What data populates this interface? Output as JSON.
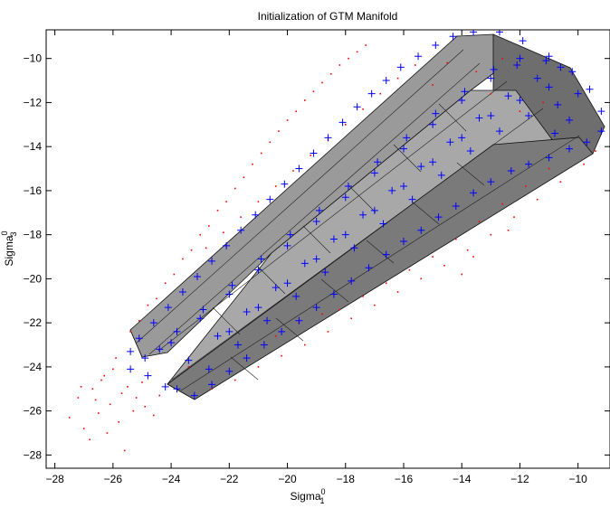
{
  "chart_data": {
    "type": "scatter",
    "title": "Initialization of GTM Manifold",
    "xlabel": {
      "base": "Sigma",
      "sup": "0",
      "sub": "1"
    },
    "ylabel": {
      "base": "Sigma",
      "sup": "0",
      "sub": "3"
    },
    "xlim": [
      -28.3,
      -8.9
    ],
    "ylim": [
      -28.6,
      -8.7
    ],
    "xticks": [
      -28,
      -26,
      -24,
      -22,
      -20,
      -18,
      -16,
      -14,
      -12,
      -10
    ],
    "yticks": [
      -28,
      -26,
      -24,
      -22,
      -20,
      -18,
      -16,
      -14,
      -12,
      -10
    ],
    "grid": false,
    "series": [
      {
        "marker": "+",
        "color": "#0000ff",
        "points": [
          [
            -25.4,
            -23.3
          ],
          [
            -25.1,
            -22.7
          ],
          [
            -24.6,
            -22.0
          ],
          [
            -24.1,
            -21.3
          ],
          [
            -23.6,
            -20.6
          ],
          [
            -23.1,
            -19.9
          ],
          [
            -22.6,
            -19.2
          ],
          [
            -22.1,
            -18.5
          ],
          [
            -21.6,
            -17.8
          ],
          [
            -21.1,
            -17.1
          ],
          [
            -20.6,
            -16.4
          ],
          [
            -20.1,
            -15.7
          ],
          [
            -19.6,
            -15.0
          ],
          [
            -19.1,
            -14.3
          ],
          [
            -18.6,
            -13.6
          ],
          [
            -18.1,
            -12.9
          ],
          [
            -17.6,
            -12.2
          ],
          [
            -17.1,
            -11.6
          ],
          [
            -16.6,
            -11.0
          ],
          [
            -16.1,
            -10.4
          ],
          [
            -15.5,
            -9.9
          ],
          [
            -14.9,
            -9.4
          ],
          [
            -14.3,
            -9.0
          ],
          [
            -13.6,
            -8.8
          ],
          [
            -12.7,
            -8.8
          ],
          [
            -11.9,
            -9.2
          ],
          [
            -11.0,
            -9.9
          ],
          [
            -10.2,
            -10.6
          ],
          [
            -9.6,
            -11.4
          ],
          [
            -9.2,
            -12.4
          ],
          [
            -9.2,
            -13.3
          ],
          [
            -9.7,
            -13.8
          ],
          [
            -10.3,
            -14.1
          ],
          [
            -11.0,
            -14.5
          ],
          [
            -11.7,
            -14.8
          ],
          [
            -12.3,
            -15.1
          ],
          [
            -13.0,
            -15.6
          ],
          [
            -13.6,
            -16.1
          ],
          [
            -14.2,
            -16.7
          ],
          [
            -14.8,
            -17.2
          ],
          [
            -15.4,
            -17.8
          ],
          [
            -16.0,
            -18.3
          ],
          [
            -16.6,
            -18.9
          ],
          [
            -17.2,
            -19.5
          ],
          [
            -17.8,
            -20.1
          ],
          [
            -18.4,
            -20.7
          ],
          [
            -19.0,
            -21.3
          ],
          [
            -19.6,
            -21.9
          ],
          [
            -20.2,
            -22.4
          ],
          [
            -20.8,
            -23.0
          ],
          [
            -21.4,
            -23.6
          ],
          [
            -22.0,
            -24.2
          ],
          [
            -22.6,
            -24.8
          ],
          [
            -23.2,
            -25.3
          ],
          [
            -25.4,
            -24.1
          ],
          [
            -24.8,
            -24.4
          ],
          [
            -24.2,
            -24.9
          ],
          [
            -23.8,
            -25.0
          ],
          [
            -24.9,
            -23.6
          ],
          [
            -24.4,
            -23.2
          ],
          [
            -23.8,
            -22.4
          ],
          [
            -22.9,
            -21.4
          ],
          [
            -21.9,
            -20.3
          ],
          [
            -20.9,
            -19.1
          ],
          [
            -19.9,
            -18.0
          ],
          [
            -18.9,
            -16.9
          ],
          [
            -17.9,
            -15.8
          ],
          [
            -16.9,
            -14.7
          ],
          [
            -15.9,
            -13.6
          ],
          [
            -14.9,
            -12.5
          ],
          [
            -13.9,
            -11.5
          ],
          [
            -12.9,
            -10.5
          ],
          [
            -12.0,
            -10.0
          ],
          [
            -23.4,
            -23.7
          ],
          [
            -22.4,
            -22.6
          ],
          [
            -21.4,
            -21.5
          ],
          [
            -20.4,
            -20.4
          ],
          [
            -19.4,
            -19.3
          ],
          [
            -18.4,
            -18.2
          ],
          [
            -17.4,
            -17.1
          ],
          [
            -16.4,
            -16.0
          ],
          [
            -15.4,
            -14.9
          ],
          [
            -14.4,
            -13.8
          ],
          [
            -13.4,
            -12.7
          ],
          [
            -12.4,
            -11.7
          ],
          [
            -11.4,
            -10.9
          ],
          [
            -10.6,
            -10.4
          ],
          [
            -24.0,
            -22.9
          ],
          [
            -23.0,
            -21.8
          ],
          [
            -22.0,
            -20.7
          ],
          [
            -21.0,
            -19.6
          ],
          [
            -20.0,
            -18.5
          ],
          [
            -19.0,
            -17.4
          ],
          [
            -18.0,
            -16.3
          ],
          [
            -17.0,
            -15.2
          ],
          [
            -16.0,
            -14.1
          ],
          [
            -15.0,
            -13.0
          ],
          [
            -14.0,
            -11.9
          ],
          [
            -13.0,
            -10.9
          ],
          [
            -12.1,
            -10.3
          ],
          [
            -11.1,
            -10.1
          ],
          [
            -22.7,
            -24.1
          ],
          [
            -21.7,
            -23.0
          ],
          [
            -20.7,
            -21.9
          ],
          [
            -19.7,
            -20.8
          ],
          [
            -18.7,
            -19.7
          ],
          [
            -17.7,
            -18.6
          ],
          [
            -16.7,
            -17.5
          ],
          [
            -15.7,
            -16.4
          ],
          [
            -14.7,
            -15.3
          ],
          [
            -13.7,
            -14.2
          ],
          [
            -12.7,
            -13.3
          ],
          [
            -11.7,
            -12.6
          ],
          [
            -10.7,
            -12.1
          ],
          [
            -10.0,
            -11.6
          ],
          [
            -22.0,
            -22.4
          ],
          [
            -21.0,
            -21.3
          ],
          [
            -20.0,
            -20.2
          ],
          [
            -19.0,
            -19.1
          ],
          [
            -18.0,
            -18.0
          ],
          [
            -17.0,
            -16.9
          ],
          [
            -16.0,
            -15.8
          ],
          [
            -15.0,
            -14.7
          ],
          [
            -14.0,
            -13.6
          ],
          [
            -13.0,
            -12.6
          ],
          [
            -12.0,
            -11.9
          ],
          [
            -11.0,
            -11.3
          ],
          [
            -10.3,
            -12.8
          ],
          [
            -10.8,
            -13.4
          ]
        ]
      },
      {
        "marker": ".",
        "color": "#ff0000",
        "points": [
          [
            -27.5,
            -26.3
          ],
          [
            -27.2,
            -25.4
          ],
          [
            -27.0,
            -26.8
          ],
          [
            -26.8,
            -27.3
          ],
          [
            -26.7,
            -25.0
          ],
          [
            -26.5,
            -26.1
          ],
          [
            -26.4,
            -24.6
          ],
          [
            -26.2,
            -27.0
          ],
          [
            -26.1,
            -25.7
          ],
          [
            -26.0,
            -24.1
          ],
          [
            -25.8,
            -26.5
          ],
          [
            -25.7,
            -25.2
          ],
          [
            -25.6,
            -27.8
          ],
          [
            -25.5,
            -24.9
          ],
          [
            -25.3,
            -26.0
          ],
          [
            -25.2,
            -25.4
          ],
          [
            -25.9,
            -23.6
          ],
          [
            -26.3,
            -24.4
          ],
          [
            -26.6,
            -25.5
          ],
          [
            -27.1,
            -24.9
          ],
          [
            -24.9,
            -25.8
          ],
          [
            -24.6,
            -26.2
          ],
          [
            -24.4,
            -25.3
          ],
          [
            -25.0,
            -24.7
          ],
          [
            -25.4,
            -22.4
          ],
          [
            -25.1,
            -21.9
          ],
          [
            -24.8,
            -21.2
          ],
          [
            -24.5,
            -20.9
          ],
          [
            -24.2,
            -20.2
          ],
          [
            -23.9,
            -19.8
          ],
          [
            -23.6,
            -19.1
          ],
          [
            -23.3,
            -18.7
          ],
          [
            -23.0,
            -18.0
          ],
          [
            -22.7,
            -17.6
          ],
          [
            -22.4,
            -16.9
          ],
          [
            -22.1,
            -16.5
          ],
          [
            -21.8,
            -15.9
          ],
          [
            -21.5,
            -15.4
          ],
          [
            -21.2,
            -14.8
          ],
          [
            -20.9,
            -14.3
          ],
          [
            -20.6,
            -13.8
          ],
          [
            -20.3,
            -13.3
          ],
          [
            -20.0,
            -12.8
          ],
          [
            -19.7,
            -12.4
          ],
          [
            -19.4,
            -11.9
          ],
          [
            -19.1,
            -11.5
          ],
          [
            -18.8,
            -11.1
          ],
          [
            -18.5,
            -10.7
          ],
          [
            -18.2,
            -10.3
          ],
          [
            -17.9,
            -10.0
          ],
          [
            -17.6,
            -9.7
          ],
          [
            -17.3,
            -9.4
          ],
          [
            -22.8,
            -18.6
          ],
          [
            -22.2,
            -17.9
          ],
          [
            -21.6,
            -17.2
          ],
          [
            -21.0,
            -16.5
          ],
          [
            -20.4,
            -15.8
          ],
          [
            -19.8,
            -15.1
          ],
          [
            -19.2,
            -14.4
          ],
          [
            -18.6,
            -13.7
          ],
          [
            -18.0,
            -13.0
          ],
          [
            -17.4,
            -12.3
          ],
          [
            -16.8,
            -11.6
          ],
          [
            -16.2,
            -10.9
          ],
          [
            -15.6,
            -10.3
          ],
          [
            -23.4,
            -24.0
          ],
          [
            -22.6,
            -25.0
          ],
          [
            -21.8,
            -24.6
          ],
          [
            -21.0,
            -24.0
          ],
          [
            -20.2,
            -23.5
          ],
          [
            -19.4,
            -23.0
          ],
          [
            -18.6,
            -22.4
          ],
          [
            -17.8,
            -21.8
          ],
          [
            -17.0,
            -21.2
          ],
          [
            -16.2,
            -20.6
          ],
          [
            -15.4,
            -20.0
          ],
          [
            -14.6,
            -19.4
          ],
          [
            -13.8,
            -18.7
          ],
          [
            -13.0,
            -18.0
          ],
          [
            -12.2,
            -17.2
          ],
          [
            -11.4,
            -16.4
          ],
          [
            -10.6,
            -15.6
          ],
          [
            -9.8,
            -14.8
          ],
          [
            -9.4,
            -14.2
          ],
          [
            -18.2,
            -21.4
          ],
          [
            -17.4,
            -20.8
          ],
          [
            -16.6,
            -20.2
          ],
          [
            -15.8,
            -19.6
          ],
          [
            -15.0,
            -19.0
          ],
          [
            -14.2,
            -18.2
          ],
          [
            -13.4,
            -17.4
          ],
          [
            -12.6,
            -16.6
          ],
          [
            -11.8,
            -15.8
          ],
          [
            -11.0,
            -15.0
          ],
          [
            -20.4,
            -22.6
          ],
          [
            -19.6,
            -22.0
          ],
          [
            -18.8,
            -21.6
          ],
          [
            -14.0,
            -19.8
          ],
          [
            -13.6,
            -19.0
          ],
          [
            -12.4,
            -17.8
          ],
          [
            -14.5,
            -10.2
          ],
          [
            -13.5,
            -10.6
          ],
          [
            -13.0,
            -11.6
          ],
          [
            -12.0,
            -12.4
          ],
          [
            -11.2,
            -12.0
          ],
          [
            -15.0,
            -11.2
          ],
          [
            -12.6,
            -10.0
          ]
        ]
      }
    ]
  }
}
